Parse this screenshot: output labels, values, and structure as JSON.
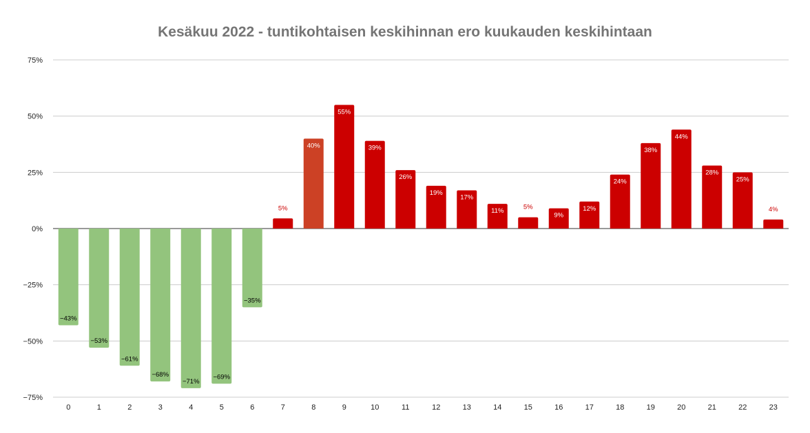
{
  "chart_data": {
    "type": "bar",
    "title": "Kesäkuu 2022 - tuntikohtaisen keskihinnan ero kuukauden keskihintaan",
    "xlabel": "",
    "ylabel": "",
    "ylim": [
      -75,
      75
    ],
    "yticks": [
      75,
      50,
      25,
      0,
      -25,
      -50,
      -75
    ],
    "ytick_labels": [
      "75%",
      "50%",
      "25%",
      "0%",
      "−25%",
      "−50%",
      "−75%"
    ],
    "grid": true,
    "categories": [
      "0",
      "1",
      "2",
      "3",
      "4",
      "5",
      "6",
      "7",
      "8",
      "9",
      "10",
      "11",
      "12",
      "13",
      "14",
      "15",
      "16",
      "17",
      "18",
      "19",
      "20",
      "21",
      "22",
      "23"
    ],
    "values": [
      -43,
      -53,
      -61,
      -68,
      -71,
      -69,
      -35,
      4.5,
      40,
      55,
      39,
      26,
      19,
      17,
      11,
      5,
      9,
      12,
      24,
      38,
      44,
      28,
      25,
      4
    ],
    "data_labels": [
      "−43%",
      "−53%",
      "−61%",
      "−68%",
      "−71%",
      "−69%",
      "−35%",
      "5%",
      "40%",
      "55%",
      "39%",
      "26%",
      "19%",
      "17%",
      "11%",
      "5%",
      "9%",
      "12%",
      "24%",
      "38%",
      "44%",
      "28%",
      "25%",
      "4%"
    ],
    "colors": {
      "negative": "#93c47d",
      "positive": "#cc0000",
      "highlight": "#cc4125",
      "highlight_index": 8
    }
  }
}
